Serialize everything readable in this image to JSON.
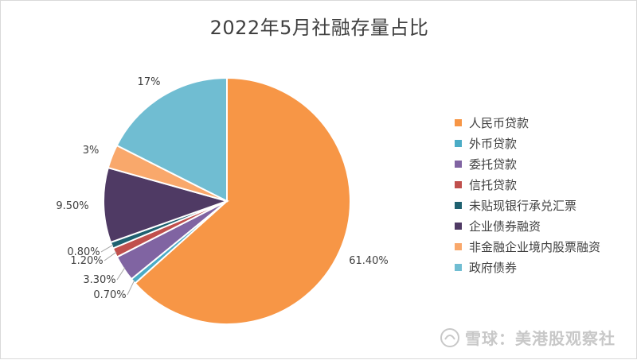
{
  "chart_data": {
    "type": "pie",
    "title": "2022年5月社融存量占比",
    "categories": [
      "人民币贷款",
      "外币贷款",
      "委托贷款",
      "信托贷款",
      "未贴现银行承兑汇票",
      "企业债券融资",
      "非金融企业境内股票融资",
      "政府债券"
    ],
    "values": [
      61.4,
      0.7,
      3.3,
      1.2,
      0.8,
      9.5,
      3,
      17
    ],
    "value_labels": [
      "61.40%",
      "0.70%",
      "3.30%",
      "1.20%",
      "0.80%",
      "9.50%",
      "3%",
      "17%"
    ],
    "colors": [
      "#F79646",
      "#4BACC6",
      "#8064A2",
      "#C0504D",
      "#1F6170",
      "#4F3A64",
      "#F9A86B",
      "#70BDD2"
    ],
    "start_angle_deg": 0,
    "direction": "clockwise",
    "legend_position": "right"
  },
  "watermark": {
    "text": "雪球：美港股观察社",
    "icon": "snowball-logo-icon"
  }
}
